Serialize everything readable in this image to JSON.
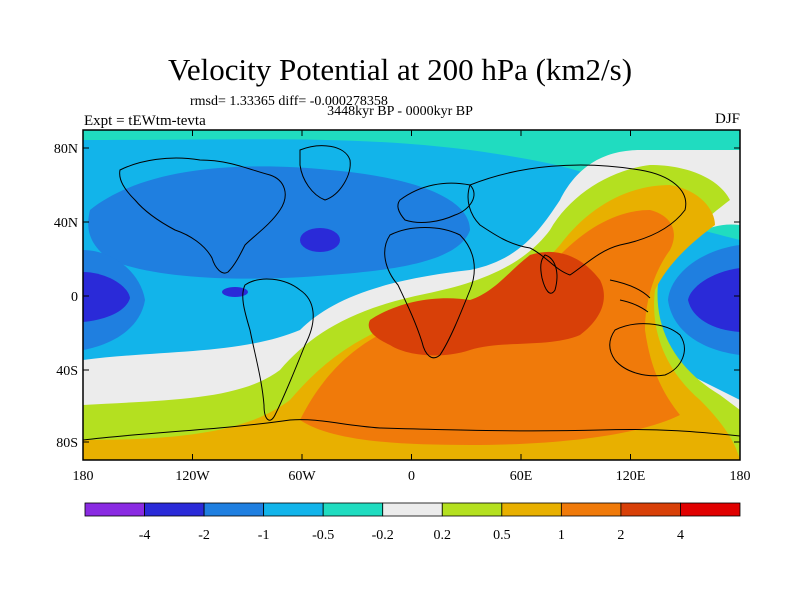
{
  "title": "Velocity Potential at 200 hPa (km2/s)",
  "stats": "rmsd= 1.33365 diff= -0.000278358",
  "subtitle": "3448kyr BP - 0000kyr BP",
  "left_label": "Expt = tEWtm-tevta",
  "right_label": "DJF",
  "x_ticks": [
    "180",
    "120W",
    "60W",
    "0",
    "60E",
    "120E",
    "180"
  ],
  "y_ticks": [
    "80N",
    "40N",
    "0",
    "40S",
    "80S"
  ],
  "colorbar": {
    "labels": [
      "-4",
      "-2",
      "-1",
      "-0.5",
      "-0.2",
      "0.2",
      "0.5",
      "1",
      "2",
      "4"
    ],
    "colors": [
      "#8a2be2",
      "#2a2ad8",
      "#1f7fe0",
      "#12b4ea",
      "#20dcc0",
      "#ececec",
      "#b4e020",
      "#e8b000",
      "#f07a0a",
      "#d84008",
      "#e00000"
    ]
  }
}
